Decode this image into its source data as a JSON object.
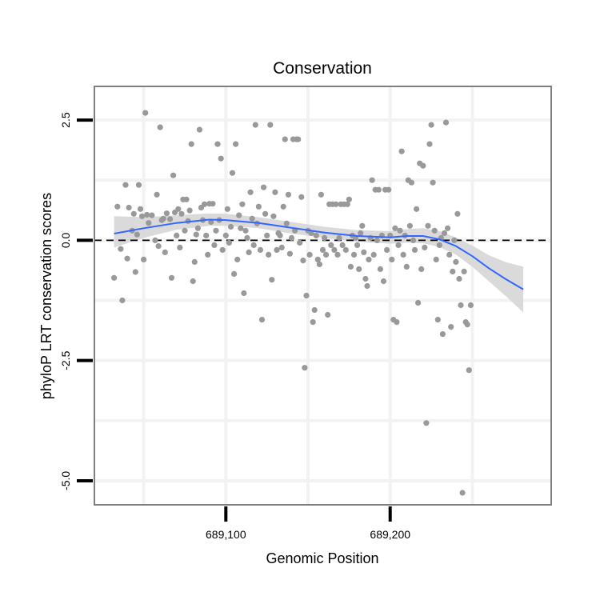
{
  "chart_data": {
    "type": "scatter",
    "title": "Conservation",
    "xlabel": "Genomic Position",
    "ylabel": "phyloP LRT conservation scores",
    "xlim": [
      689020,
      689298
    ],
    "ylim": [
      -5.5,
      3.2
    ],
    "x_ticks": [
      {
        "value": 689100,
        "label": "689,100"
      },
      {
        "value": 689200,
        "label": "689,200"
      }
    ],
    "y_ticks": [
      {
        "value": 2.5,
        "label": "2.5"
      },
      {
        "value": 0.0,
        "label": "0.0"
      },
      {
        "value": -2.5,
        "label": "-2.5"
      },
      {
        "value": -5.0,
        "label": "-5.0"
      }
    ],
    "x_minor_grid": [
      689050,
      689150,
      689250
    ],
    "y_minor_grid": [
      1.25,
      -1.25,
      -3.75
    ],
    "reference_line": {
      "y": 0.0,
      "style": "dashed"
    },
    "colors": {
      "points": "#999999",
      "smooth_line": "#3366ff",
      "ribbon": "#d6d6d6",
      "grid": "#f2f2f2",
      "panel_border": "#7f7f7f"
    },
    "smooth": {
      "x": [
        689032,
        689050,
        689070,
        689090,
        689100,
        689120,
        689140,
        689160,
        689180,
        689200,
        689210,
        689220,
        689230,
        689240,
        689250,
        689260,
        689270,
        689281
      ],
      "y": [
        0.14,
        0.25,
        0.36,
        0.43,
        0.42,
        0.36,
        0.26,
        0.16,
        0.09,
        0.06,
        0.09,
        0.09,
        0.02,
        -0.12,
        -0.33,
        -0.58,
        -0.8,
        -1.02
      ],
      "lower": [
        -0.15,
        0.05,
        0.22,
        0.3,
        0.3,
        0.25,
        0.14,
        0.05,
        -0.03,
        -0.07,
        -0.05,
        -0.06,
        -0.14,
        -0.3,
        -0.55,
        -0.85,
        -1.15,
        -1.5
      ],
      "upper": [
        0.5,
        0.48,
        0.52,
        0.56,
        0.55,
        0.48,
        0.38,
        0.28,
        0.21,
        0.19,
        0.23,
        0.25,
        0.19,
        0.06,
        -0.11,
        -0.31,
        -0.45,
        -0.55
      ]
    },
    "points": [
      [
        689032,
        -0.78
      ],
      [
        689034,
        0.7
      ],
      [
        689036,
        -0.18
      ],
      [
        689037,
        -1.25
      ],
      [
        689039,
        1.15
      ],
      [
        689040,
        -0.38
      ],
      [
        689041,
        0.68
      ],
      [
        689043,
        0.2
      ],
      [
        689044,
        0.55
      ],
      [
        689045,
        -0.66
      ],
      [
        689046,
        0.12
      ],
      [
        689047,
        1.15
      ],
      [
        689048,
        0.65
      ],
      [
        689049,
        0.5
      ],
      [
        689050,
        -0.4
      ],
      [
        689051,
        2.65
      ],
      [
        689052,
        0.53
      ],
      [
        689053,
        0.36
      ],
      [
        689055,
        0.52
      ],
      [
        689057,
        0.0
      ],
      [
        689058,
        0.95
      ],
      [
        689059,
        -0.12
      ],
      [
        689060,
        2.35
      ],
      [
        689061,
        0.42
      ],
      [
        689062,
        0.45
      ],
      [
        689063,
        -0.25
      ],
      [
        689064,
        0.56
      ],
      [
        689066,
        0.44
      ],
      [
        689067,
        -0.78
      ],
      [
        689068,
        1.35
      ],
      [
        689069,
        0.58
      ],
      [
        689070,
        0.1
      ],
      [
        689071,
        0.65
      ],
      [
        689072,
        -0.15
      ],
      [
        689073,
        0.55
      ],
      [
        689074,
        0.85
      ],
      [
        689075,
        0.2
      ],
      [
        689076,
        0.85
      ],
      [
        689077,
        0.4
      ],
      [
        689078,
        0.62
      ],
      [
        689079,
        2.0
      ],
      [
        689080,
        -0.85
      ],
      [
        689081,
        -0.45
      ],
      [
        689082,
        0.12
      ],
      [
        689083,
        0.25
      ],
      [
        689084,
        2.3
      ],
      [
        689085,
        0.68
      ],
      [
        689086,
        0.42
      ],
      [
        689087,
        0.75
      ],
      [
        689088,
        0.1
      ],
      [
        689089,
        -0.3
      ],
      [
        689090,
        0.76
      ],
      [
        689091,
        0.38
      ],
      [
        689092,
        0.76
      ],
      [
        689093,
        -0.1
      ],
      [
        689094,
        0.2
      ],
      [
        689095,
        2.0
      ],
      [
        689096,
        0.42
      ],
      [
        689097,
        1.7
      ],
      [
        689098,
        -0.2
      ],
      [
        689100,
        0.1
      ],
      [
        689101,
        0.65
      ],
      [
        689102,
        -0.05
      ],
      [
        689103,
        0.28
      ],
      [
        689104,
        1.4
      ],
      [
        689105,
        -0.7
      ],
      [
        689106,
        2.0
      ],
      [
        689107,
        -0.4
      ],
      [
        689108,
        0.52
      ],
      [
        689109,
        0.25
      ],
      [
        689110,
        0.75
      ],
      [
        689111,
        -1.1
      ],
      [
        689112,
        0.2
      ],
      [
        689113,
        0.05
      ],
      [
        689114,
        -0.25
      ],
      [
        689115,
        1.0
      ],
      [
        689116,
        0.45
      ],
      [
        689117,
        -0.1
      ],
      [
        689118,
        2.4
      ],
      [
        689119,
        0.35
      ],
      [
        689120,
        0.7
      ],
      [
        689121,
        -0.2
      ],
      [
        689122,
        -1.65
      ],
      [
        689123,
        1.1
      ],
      [
        689124,
        0.55
      ],
      [
        689125,
        0.1
      ],
      [
        689126,
        -0.3
      ],
      [
        689127,
        2.4
      ],
      [
        689128,
        -0.82
      ],
      [
        689129,
        0.5
      ],
      [
        689130,
        1.0
      ],
      [
        689131,
        -0.2
      ],
      [
        689132,
        0.15
      ],
      [
        689133,
        0.1
      ],
      [
        689134,
        -0.15
      ],
      [
        689135,
        0.7
      ],
      [
        689136,
        2.1
      ],
      [
        689137,
        0.35
      ],
      [
        689138,
        0.95
      ],
      [
        689139,
        -0.28
      ],
      [
        689140,
        0.05
      ],
      [
        689141,
        2.1
      ],
      [
        689142,
        0.2
      ],
      [
        689143,
        2.1
      ],
      [
        689144,
        2.1
      ],
      [
        689145,
        -0.05
      ],
      [
        689146,
        0.9
      ],
      [
        689147,
        -0.42
      ],
      [
        689148,
        -2.65
      ],
      [
        689149,
        -1.15
      ],
      [
        689150,
        0.2
      ],
      [
        689151,
        -0.3
      ],
      [
        689152,
        0.15
      ],
      [
        689153,
        -1.7
      ],
      [
        689154,
        -1.45
      ],
      [
        689155,
        0.1
      ],
      [
        689156,
        -0.4
      ],
      [
        689157,
        -0.5
      ],
      [
        689158,
        0.95
      ],
      [
        689159,
        -0.2
      ],
      [
        689160,
        0.05
      ],
      [
        689161,
        -0.3
      ],
      [
        689162,
        -1.55
      ],
      [
        689163,
        0.75
      ],
      [
        689164,
        -0.1
      ],
      [
        689165,
        0.75
      ],
      [
        689166,
        -0.2
      ],
      [
        689167,
        0.75
      ],
      [
        689168,
        -0.3
      ],
      [
        689169,
        0.05
      ],
      [
        689170,
        0.75
      ],
      [
        689171,
        -0.1
      ],
      [
        689172,
        0.75
      ],
      [
        689173,
        -0.2
      ],
      [
        689174,
        0.75
      ],
      [
        689175,
        0.85
      ],
      [
        689176,
        -0.55
      ],
      [
        689177,
        0.1
      ],
      [
        689178,
        -0.3
      ],
      [
        689179,
        0.05
      ],
      [
        689180,
        -0.1
      ],
      [
        689181,
        -0.6
      ],
      [
        689182,
        0.15
      ],
      [
        689183,
        0.3
      ],
      [
        689184,
        -0.25
      ],
      [
        689185,
        -0.8
      ],
      [
        689186,
        -0.95
      ],
      [
        689187,
        -0.4
      ],
      [
        689188,
        0.05
      ],
      [
        689189,
        1.25
      ],
      [
        689190,
        -0.3
      ],
      [
        689191,
        1.05
      ],
      [
        689192,
        0.0
      ],
      [
        689193,
        1.05
      ],
      [
        689194,
        -0.6
      ],
      [
        689195,
        0.1
      ],
      [
        689196,
        -0.85
      ],
      [
        689197,
        1.05
      ],
      [
        689198,
        -0.2
      ],
      [
        689199,
        1.05
      ],
      [
        689200,
        0.1
      ],
      [
        689201,
        -0.4
      ],
      [
        689202,
        -1.65
      ],
      [
        689203,
        0.25
      ],
      [
        689204,
        -1.7
      ],
      [
        689205,
        -0.1
      ],
      [
        689206,
        0.2
      ],
      [
        689207,
        1.85
      ],
      [
        689208,
        -0.3
      ],
      [
        689209,
        0.1
      ],
      [
        689210,
        -0.55
      ],
      [
        689211,
        1.25
      ],
      [
        689212,
        0.3
      ],
      [
        689213,
        1.2
      ],
      [
        689214,
        0.0
      ],
      [
        689215,
        -0.2
      ],
      [
        689216,
        0.65
      ],
      [
        689217,
        -1.3
      ],
      [
        689218,
        1.6
      ],
      [
        689219,
        -0.6
      ],
      [
        689220,
        1.55
      ],
      [
        689221,
        -0.15
      ],
      [
        689222,
        -3.8
      ],
      [
        689223,
        0.3
      ],
      [
        689224,
        2.0
      ],
      [
        689225,
        2.4
      ],
      [
        689226,
        1.2
      ],
      [
        689227,
        0.2
      ],
      [
        689228,
        -0.4
      ],
      [
        689229,
        -1.65
      ],
      [
        689230,
        -0.1
      ],
      [
        689231,
        0.05
      ],
      [
        689232,
        -1.95
      ],
      [
        689233,
        0.15
      ],
      [
        689234,
        2.45
      ],
      [
        689235,
        0.25
      ],
      [
        689236,
        -0.3
      ],
      [
        689237,
        -1.8
      ],
      [
        689238,
        -0.65
      ],
      [
        689239,
        0.0
      ],
      [
        689240,
        -0.45
      ],
      [
        689241,
        0.55
      ],
      [
        689242,
        -0.8
      ],
      [
        689243,
        -1.35
      ],
      [
        689244,
        -5.25
      ],
      [
        689245,
        -0.65
      ],
      [
        689246,
        -1.7
      ],
      [
        689247,
        -1.75
      ],
      [
        689248,
        -2.7
      ],
      [
        689249,
        -1.35
      ]
    ]
  }
}
